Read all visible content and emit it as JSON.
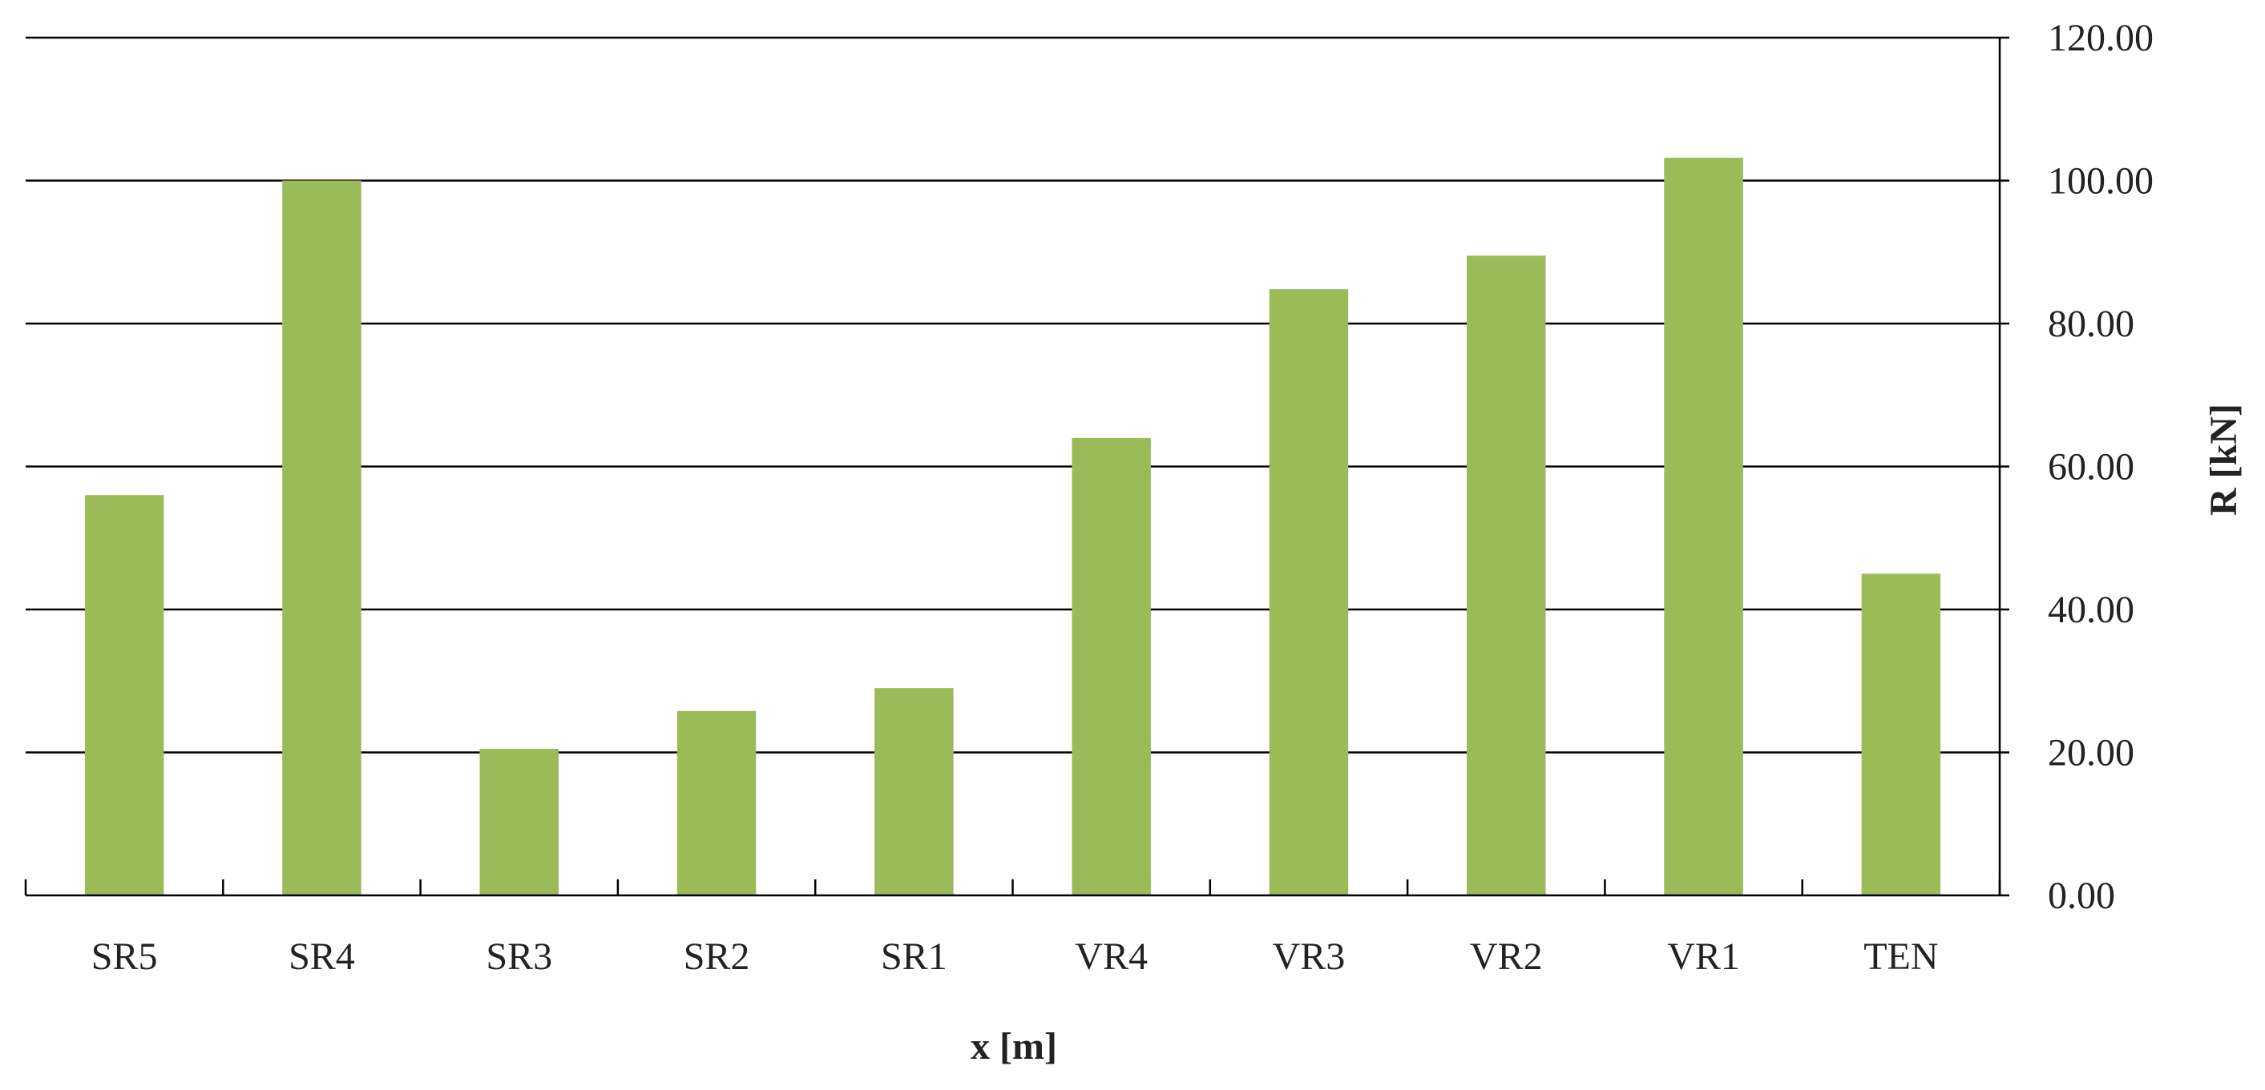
{
  "chart_data": {
    "type": "bar",
    "categories": [
      "SR5",
      "SR4",
      "SR3",
      "SR2",
      "SR1",
      "VR4",
      "VR3",
      "VR2",
      "VR1",
      "TEN"
    ],
    "values": [
      56.0,
      100.0,
      20.5,
      25.8,
      29.0,
      64.0,
      84.8,
      89.5,
      103.2,
      45.0
    ],
    "xlabel": "x [m]",
    "ylabel": "R [kN]",
    "ylim": [
      0,
      120
    ],
    "yticks": [
      "0.00",
      "20.00",
      "40.00",
      "60.00",
      "80.00",
      "100.00",
      "120.00"
    ],
    "ytick_values": [
      0,
      20,
      40,
      60,
      80,
      100,
      120
    ],
    "y_axis_side": "right",
    "grid": true,
    "legend": "none",
    "bar_color": "#9bbb59"
  }
}
